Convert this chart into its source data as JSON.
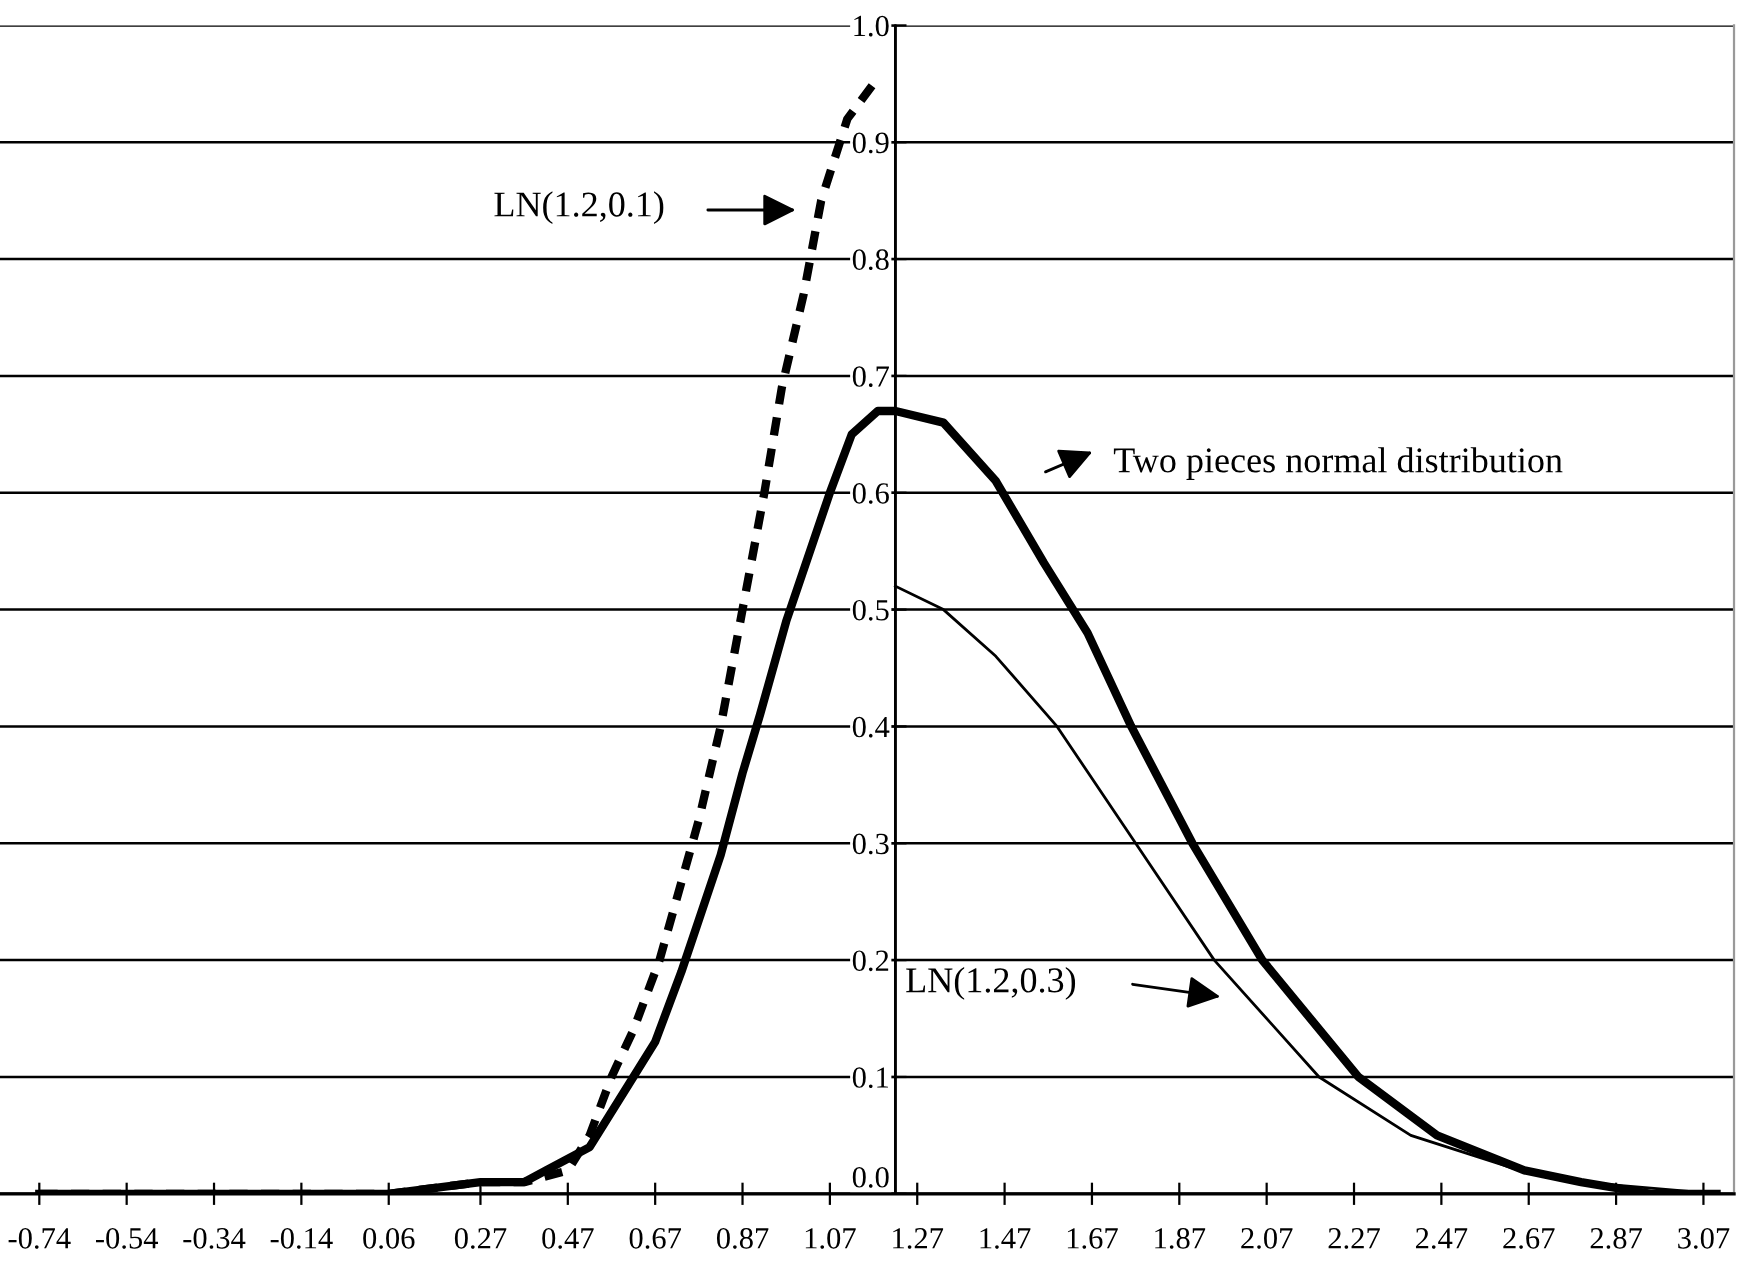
{
  "chart_data": {
    "type": "line",
    "series": [
      {
        "color": "#000000",
        "line_style": "solid",
        "x": [
          -0.74,
          -0.34,
          0.06,
          0.27,
          0.37,
          0.42,
          0.52,
          0.62,
          0.67,
          0.73,
          0.82,
          0.87,
          0.91,
          0.97,
          1.07,
          1.12,
          1.18,
          1.22,
          1.33,
          1.45,
          1.56,
          1.66,
          1.76,
          1.9,
          2.06,
          2.28,
          2.46,
          2.66,
          2.79,
          2.95,
          3.1
        ],
        "values": [
          0.0,
          0.0,
          0.0,
          0.01,
          0.01,
          0.02,
          0.04,
          0.1,
          0.13,
          0.19,
          0.29,
          0.36,
          0.41,
          0.49,
          0.6,
          0.65,
          0.67,
          0.67,
          0.66,
          0.61,
          0.54,
          0.48,
          0.4,
          0.3,
          0.2,
          0.1,
          0.05,
          0.02,
          0.01,
          0.0,
          0.0
        ]
      },
      {
        "color": "#000000",
        "line_style": "solid",
        "x": [
          1.22,
          1.33,
          1.45,
          1.59,
          1.77,
          1.95,
          2.19,
          2.4,
          2.65,
          2.79,
          3.1
        ],
        "values": [
          0.52,
          0.5,
          0.46,
          0.4,
          0.3,
          0.2,
          0.1,
          0.05,
          0.02,
          0.01,
          0.0
        ]
      },
      {
        "color": "#000000",
        "line_style": "dashed",
        "x": [
          -0.74,
          0.06,
          0.27,
          0.37,
          0.47,
          0.52,
          0.57,
          0.62,
          0.68,
          0.77,
          0.82,
          0.87,
          0.92,
          0.96,
          1.01,
          1.05,
          1.11,
          1.17
        ],
        "values": [
          0.0,
          0.0,
          0.01,
          0.01,
          0.02,
          0.05,
          0.1,
          0.14,
          0.2,
          0.32,
          0.4,
          0.5,
          0.6,
          0.69,
          0.77,
          0.85,
          0.92,
          0.95
        ]
      }
    ],
    "xlim": [
      -0.83,
      3.14
    ],
    "xticks": [
      -0.74,
      -0.54,
      -0.34,
      -0.14,
      0.06,
      0.27,
      0.47,
      0.67,
      0.87,
      1.07,
      1.27,
      1.47,
      1.67,
      1.87,
      2.07,
      2.27,
      2.47,
      2.67,
      2.87,
      3.07
    ],
    "ylim": [
      0,
      1
    ],
    "yticks": [
      {
        "value": 0,
        "label": "0.0"
      },
      {
        "value": 0.1,
        "label": "0.1"
      },
      {
        "value": 0.2,
        "label": "0.2"
      },
      {
        "value": 0.3,
        "label": "0.3"
      },
      {
        "value": 0.4,
        "label": "0.4"
      },
      {
        "value": 0.5,
        "label": "0.5"
      },
      {
        "value": 0.6,
        "label": "0.6"
      },
      {
        "value": 0.7,
        "label": "0.7"
      },
      {
        "value": 0.8,
        "label": "0.8"
      },
      {
        "value": 0.9,
        "label": "0.9"
      },
      {
        "value": 1,
        "label": "1.0"
      }
    ],
    "grid": "y",
    "ref_lines": [
      {
        "axis": "x",
        "value": 1.22,
        "color": "#000000"
      }
    ],
    "annotations": [
      "LN(1.2,0.1)",
      "Two pieces normal distribution",
      "LN(1.2,0.3)"
    ]
  }
}
